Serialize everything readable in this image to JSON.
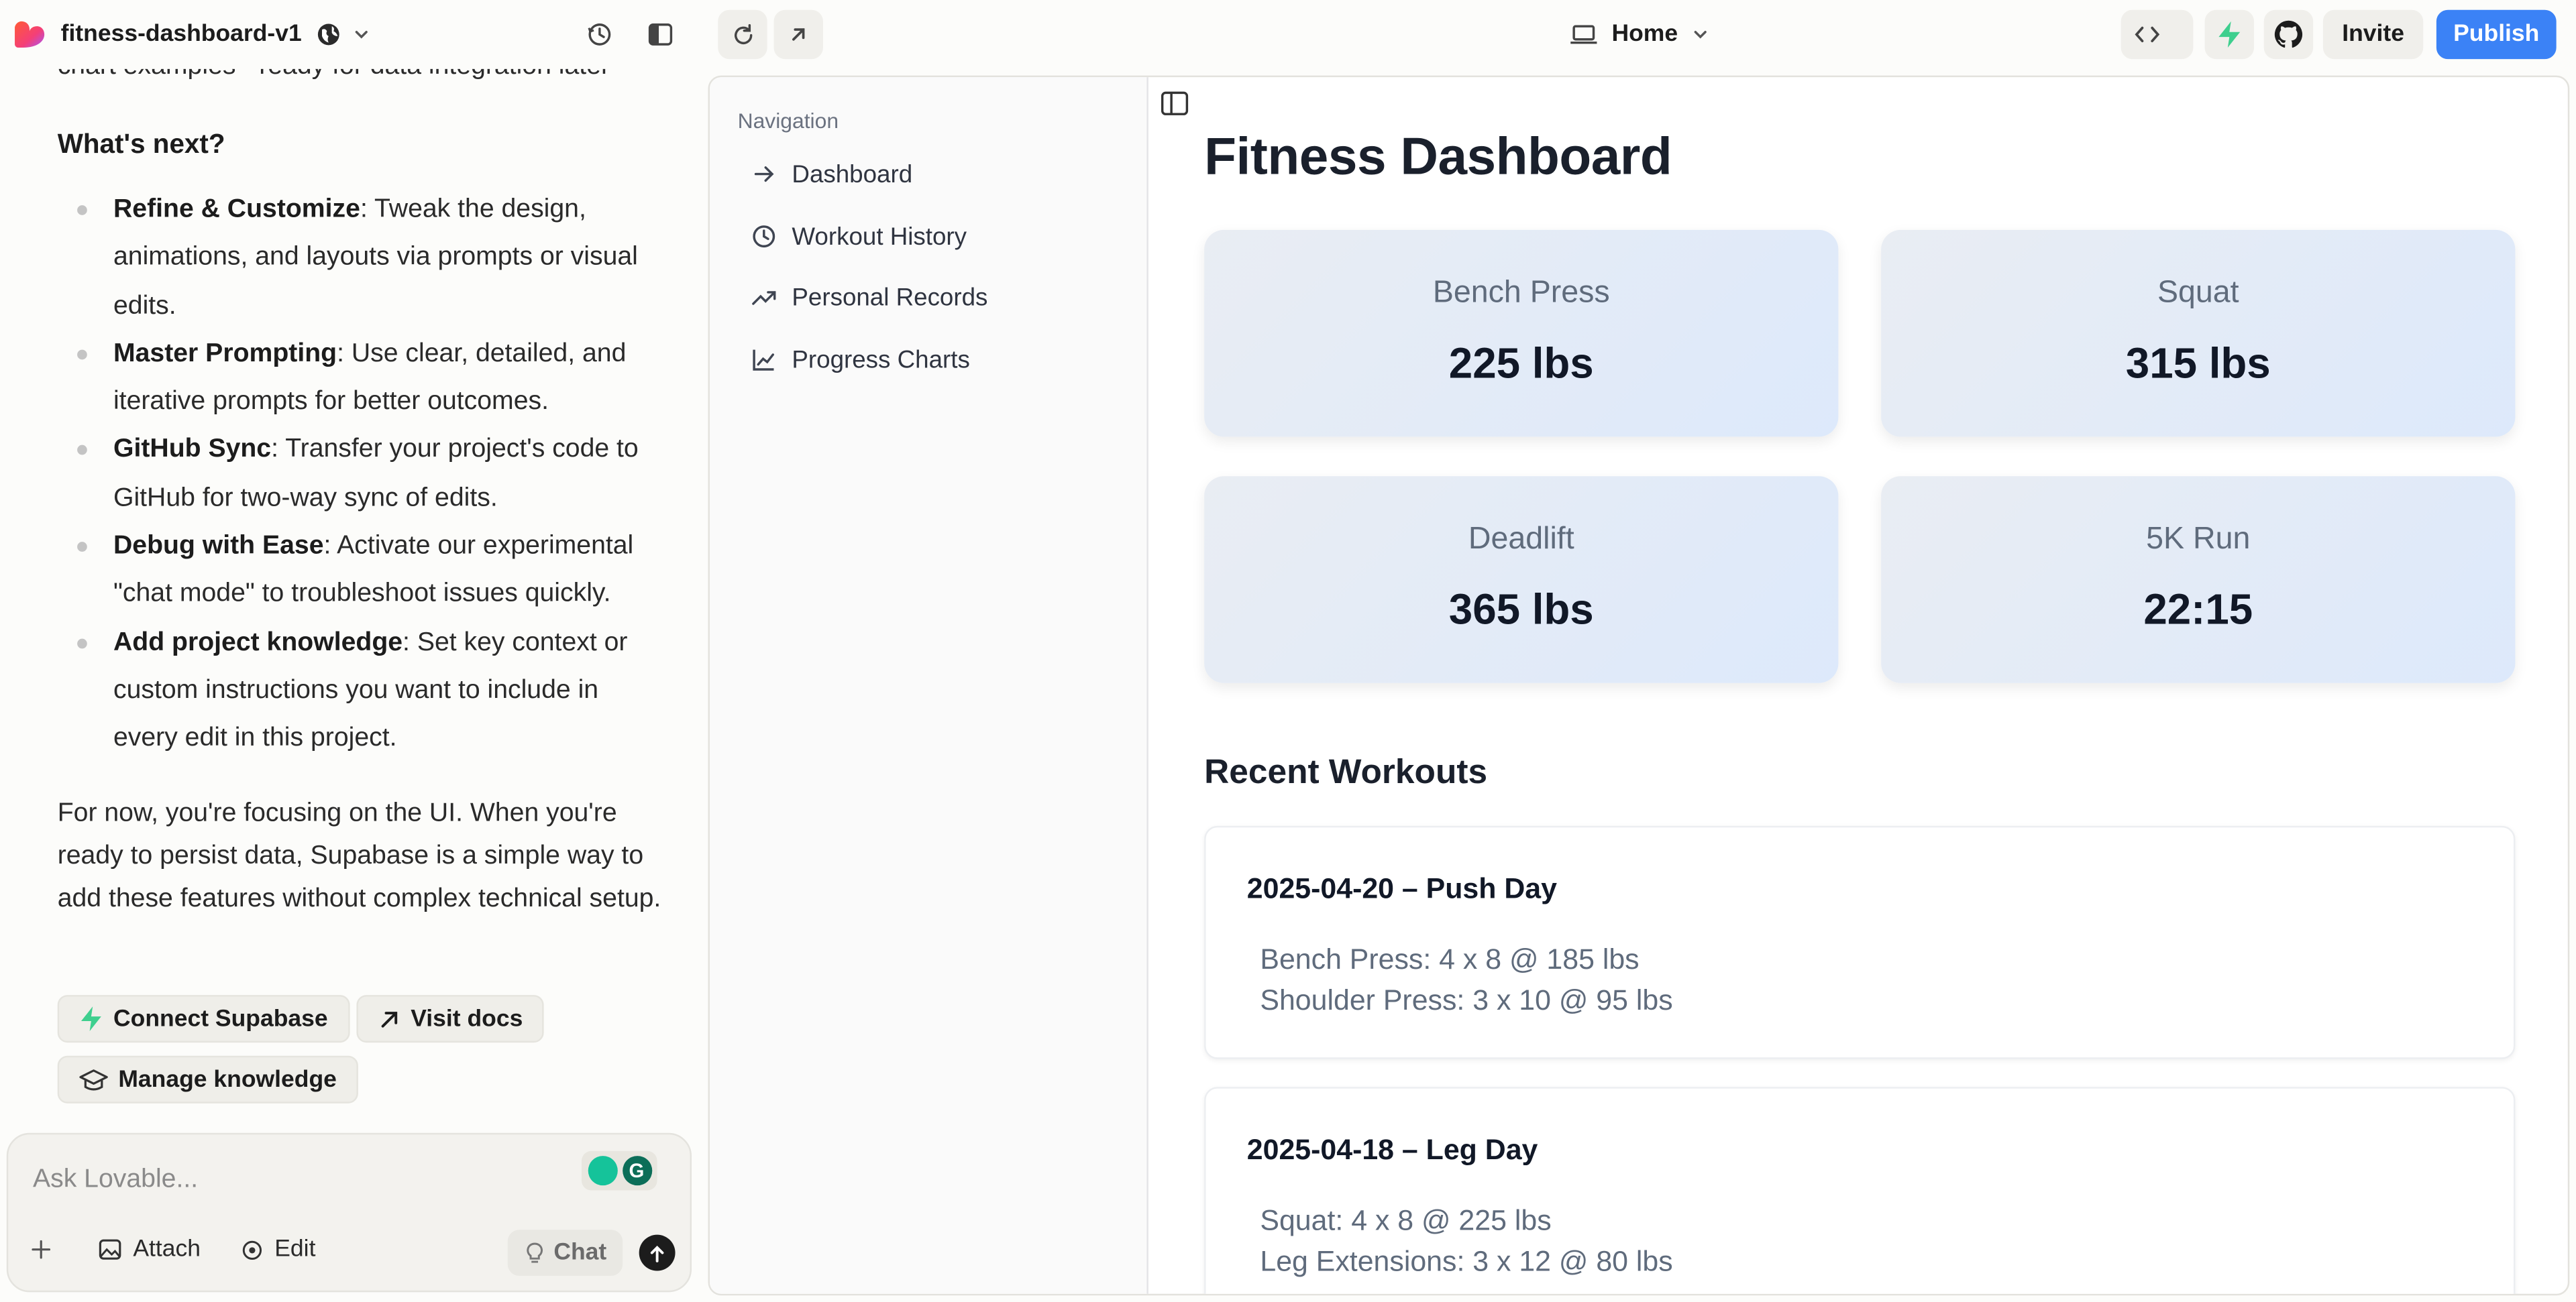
{
  "topbar": {
    "project_name": "fitness-dashboard-v1",
    "route": "Home",
    "invite": "Invite",
    "publish": "Publish",
    "colors": {
      "publish_bg": "#3b82f6",
      "supabase_green": "#3ecf8e"
    }
  },
  "chat": {
    "cutoff_text": "chart examples - ready for data integration later",
    "heading": "What's next?",
    "items": [
      {
        "bold": "Refine & Customize",
        "rest": ": Tweak the design, animations, and layouts via prompts or visual edits."
      },
      {
        "bold": "Master Prompting",
        "rest": ": Use clear, detailed, and iterative prompts for better outcomes."
      },
      {
        "bold": "GitHub Sync",
        "rest": ": Transfer your project's code to GitHub for two-way sync of edits."
      },
      {
        "bold": "Debug with Ease",
        "rest": ": Activate our experimental \"chat mode\" to troubleshoot issues quickly."
      },
      {
        "bold": "Add project knowledge",
        "rest": ": Set key context or custom instructions you want to include in every edit in this project."
      }
    ],
    "paragraph": "For now, you're focusing on the UI. When you're ready to persist data, Supabase is a simple way to add these features without complex technical setup.",
    "buttons": {
      "connect": "Connect Supabase",
      "docs": "Visit docs",
      "knowledge": "Manage knowledge"
    },
    "input": {
      "placeholder": "Ask Lovable...",
      "attach": "Attach",
      "edit": "Edit",
      "chat": "Chat"
    }
  },
  "preview": {
    "nav": {
      "title": "Navigation",
      "items": [
        {
          "label": "Dashboard",
          "icon": "arrow-right-icon"
        },
        {
          "label": "Workout History",
          "icon": "history-icon"
        },
        {
          "label": "Personal Records",
          "icon": "trending-up-icon"
        },
        {
          "label": "Progress Charts",
          "icon": "line-chart-icon"
        }
      ]
    },
    "title": "Fitness Dashboard",
    "stats": [
      {
        "label": "Bench Press",
        "value": "225 lbs"
      },
      {
        "label": "Squat",
        "value": "315 lbs"
      },
      {
        "label": "Deadlift",
        "value": "365 lbs"
      },
      {
        "label": "5K Run",
        "value": "22:15"
      }
    ],
    "recent_title": "Recent Workouts",
    "workouts": [
      {
        "title": "2025-04-20 – Push Day",
        "lines": [
          "Bench Press: 4 x 8 @ 185 lbs",
          "Shoulder Press: 3 x 10 @ 95 lbs"
        ]
      },
      {
        "title": "2025-04-18 – Leg Day",
        "lines": [
          "Squat: 4 x 8 @ 225 lbs",
          "Leg Extensions: 3 x 12 @ 80 lbs"
        ]
      }
    ]
  }
}
